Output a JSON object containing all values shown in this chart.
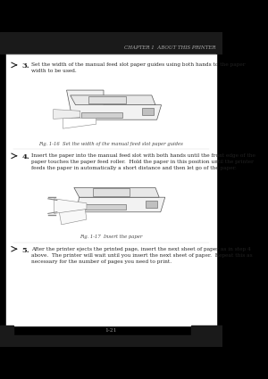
{
  "bg_color": "#000000",
  "page_bg": "#ffffff",
  "header_text": "CHAPTER 1  ABOUT THIS PRINTER",
  "step3_bullet": "3.",
  "step3_text": "Set the width of the manual feed slot paper guides using both hands to the paper\nwidth to be used.",
  "fig116_caption": "Fig. 1-16  Set the width of the manual feed slot paper guides",
  "step4_bullet": "4.",
  "step4_text": "Insert the paper into the manual feed slot with both hands until the front edge of the\npaper touches the paper feed roller.  Hold the paper in this position until the printer\nfeeds the paper in automatically a short distance and then let go of the paper.",
  "fig117_caption": "Fig. 1-17  Insert the paper",
  "step5_bullet": "5.",
  "step5_text": "After the printer ejects the printed page, insert the next sheet of paper as in step 4\nabove.  The printer will wait until you insert the next sheet of paper.  Repeat this as\nnecessary for the number of pages you need to print.",
  "page_number": "1-21",
  "text_color": "#222222",
  "caption_color": "#444444",
  "header_color": "#aaaaaa",
  "page_num_color": "#999999",
  "dark_bar": "#1a1a1a",
  "printer_edge": "#555555",
  "printer_fill": "#f2f2f2",
  "printer_dark": "#888888"
}
